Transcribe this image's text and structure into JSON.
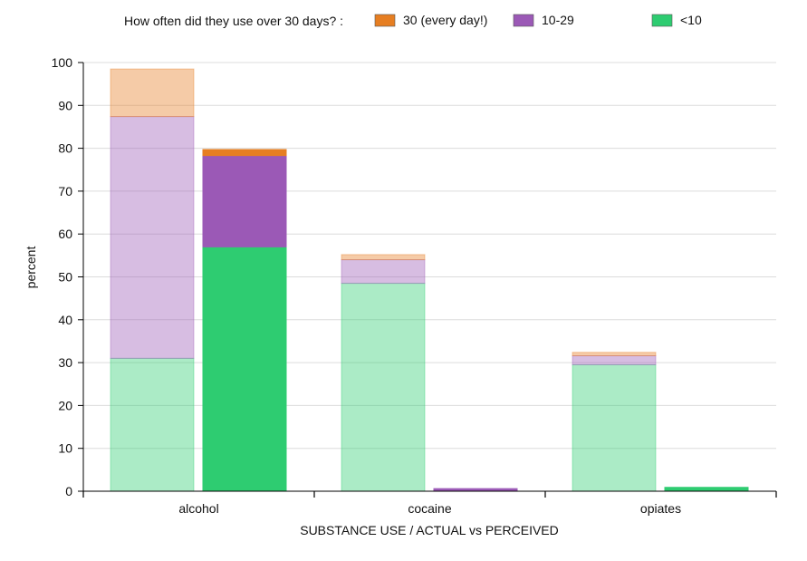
{
  "chart_data": {
    "type": "bar",
    "legend": {
      "title": "How often did they use over 30 days? :",
      "position": "top",
      "entries": [
        {
          "label": "30 (every day!)",
          "color": "#e67e22"
        },
        {
          "label": "10-29",
          "color": "#9b59b6"
        },
        {
          "label": "<10",
          "color": "#2ecc71"
        }
      ]
    },
    "categories": [
      "alcohol",
      "cocaine",
      "opiates"
    ],
    "bar_kinds": [
      "perceived",
      "actual"
    ],
    "series": [
      {
        "name": "<10",
        "color": "#2ecc71",
        "perceived": [
          31,
          48.5,
          29.5
        ],
        "actual": [
          57,
          0,
          0.9
        ]
      },
      {
        "name": "10-29",
        "color": "#9b59b6",
        "perceived": [
          56.4,
          5.5,
          2.1
        ],
        "actual": [
          21.3,
          0.6,
          0
        ]
      },
      {
        "name": "30 (every day!)",
        "color": "#e67e22",
        "perceived": [
          11.1,
          1.2,
          0.8
        ],
        "actual": [
          1.4,
          0,
          0
        ]
      }
    ],
    "perceived_opacity": 0.4,
    "ylabel": "percent",
    "xlabel": "SUBSTANCE USE / ACTUAL vs PERCEIVED",
    "ylim": [
      0,
      100
    ],
    "yticks": [
      0,
      10,
      20,
      30,
      40,
      50,
      60,
      70,
      80,
      90,
      100
    ],
    "grid": true
  }
}
